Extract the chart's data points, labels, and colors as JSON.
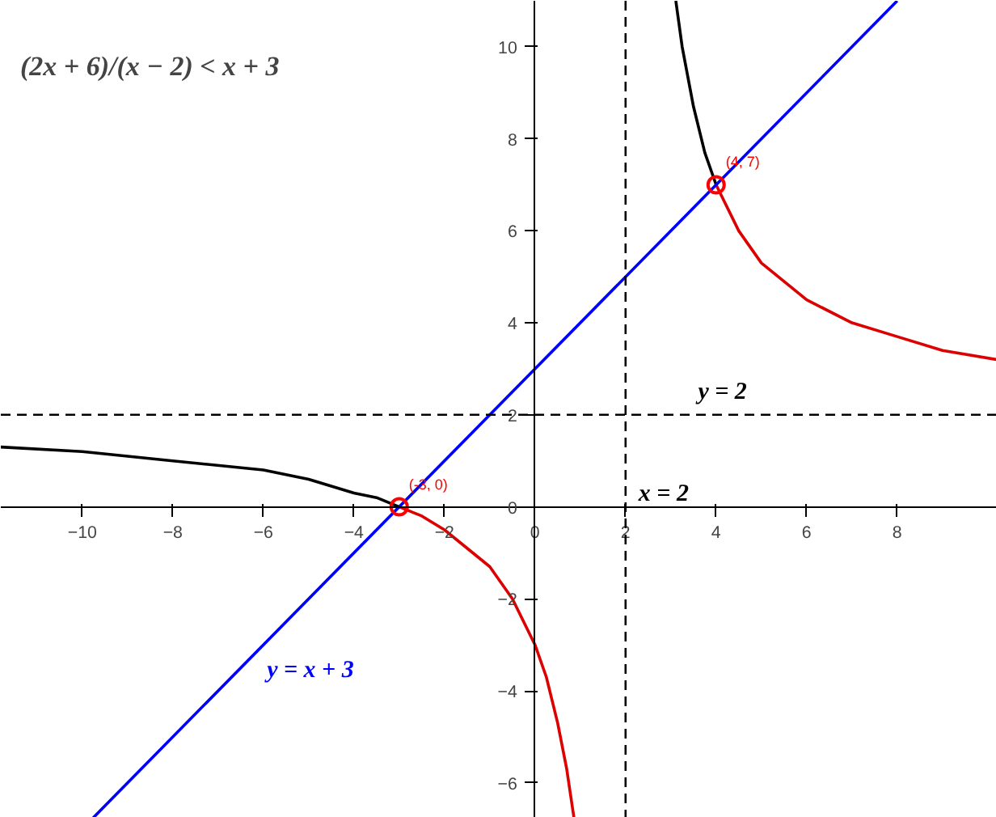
{
  "chart_data": {
    "type": "line",
    "title": "(2x + 6)/(x − 2) < x + 3",
    "xlim": [
      -11.8,
      10.2
    ],
    "ylim": [
      -6.76,
      11.0
    ],
    "xticks": [
      -10,
      -8,
      -6,
      -4,
      -2,
      0,
      2,
      4,
      6,
      8
    ],
    "yticks": [
      -6,
      -4,
      -2,
      0,
      2,
      4,
      6,
      8,
      10
    ],
    "grid": false,
    "marker": "none",
    "line_style": "solid",
    "series": [
      {
        "color": "#000000",
        "x": [
          -11.8,
          -10,
          -8,
          -6,
          -5,
          -4,
          -3.5,
          -3
        ],
        "values": [
          1.3,
          1.2,
          1.0,
          0.8,
          0.6,
          0.3,
          0.2,
          0
        ]
      },
      {
        "color": "#dd0000",
        "x": [
          -3,
          -2.5,
          -2,
          -1.5,
          -1,
          -0.5,
          0,
          0.25,
          0.5,
          0.7,
          0.86
        ],
        "values": [
          0,
          -0.2,
          -0.5,
          -0.9,
          -1.3,
          -2.0,
          -3.0,
          -3.7,
          -4.7,
          -5.7,
          -6.76
        ]
      },
      {
        "color": "#000000",
        "x": [
          3.11,
          3.25,
          3.5,
          3.75,
          4
        ],
        "values": [
          11.0,
          10.0,
          8.7,
          7.7,
          7.0
        ]
      },
      {
        "color": "#dd0000",
        "x": [
          4,
          4.5,
          5,
          6,
          7,
          8,
          9,
          10.2
        ],
        "values": [
          7.0,
          6.0,
          5.3,
          4.5,
          4.0,
          3.7,
          3.4,
          3.2
        ]
      },
      {
        "name": "y = x + 3",
        "color": "#0000ff",
        "x": [
          -9.76,
          8
        ],
        "values": [
          -6.76,
          11.0
        ]
      },
      {
        "type": "scatter",
        "marker": "circle",
        "color": "#ff0000",
        "x": [
          -3,
          4
        ],
        "values": [
          0,
          7
        ]
      }
    ],
    "ref_lines": [
      {
        "axis": "x",
        "value": 2,
        "label": "x = 2",
        "line_style": "dashed",
        "color": "#000000"
      },
      {
        "axis": "y",
        "value": 2,
        "label": "y = 2",
        "line_style": "dashed",
        "color": "#000000"
      }
    ],
    "annotations": [
      {
        "text": "(-3, 0)",
        "x": -3,
        "y": 0
      },
      {
        "text": "(4, 7)",
        "x": 4,
        "y": 7
      }
    ]
  }
}
